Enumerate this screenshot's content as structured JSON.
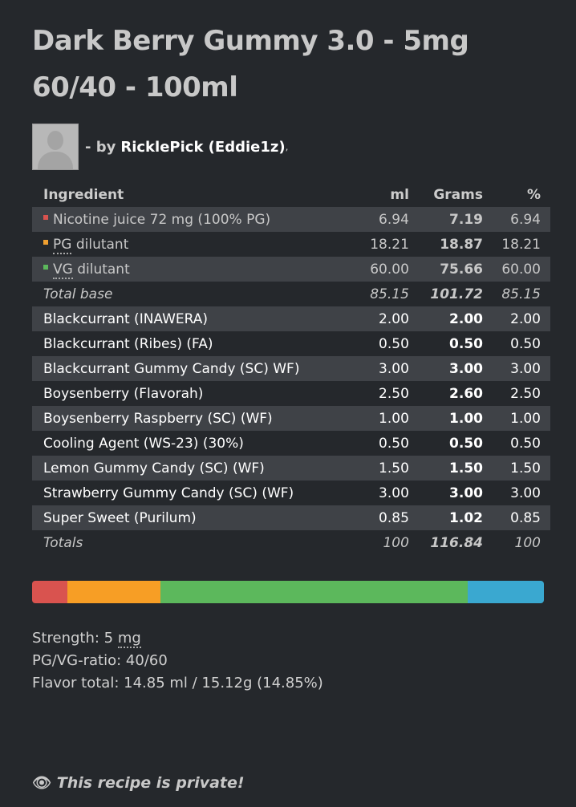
{
  "recipe": {
    "title_line1": "Dark Berry Gummy 3.0 - 5mg",
    "title_line2": "60/40 - 100ml",
    "by_prefix": "- by",
    "author": "RicklePick (Eddie1z)",
    "author_suffix": ","
  },
  "table": {
    "headers": {
      "ingredient": "Ingredient",
      "ml": "ml",
      "grams": "Grams",
      "percent": "%"
    },
    "base_rows": [
      {
        "name": "Nicotine juice 72 mg (100% PG)",
        "ml": "6.94",
        "grams": "7.19",
        "percent": "6.94",
        "color": "#d9534f"
      },
      {
        "name_abbr": "PG",
        "name_rest": " dilutant",
        "ml": "18.21",
        "grams": "18.87",
        "percent": "18.21",
        "color": "#f0a030"
      },
      {
        "name_abbr": "VG",
        "name_rest": " dilutant",
        "ml": "60.00",
        "grams": "75.66",
        "percent": "60.00",
        "color": "#5cb85c"
      }
    ],
    "total_base": {
      "label": "Total base",
      "ml": "85.15",
      "grams": "101.72",
      "percent": "85.15"
    },
    "flavors": [
      {
        "name": "Blackcurrant (INAWERA)",
        "ml": "2.00",
        "grams": "2.00",
        "percent": "2.00"
      },
      {
        "name": "Blackcurrant (Ribes) (FA)",
        "ml": "0.50",
        "grams": "0.50",
        "percent": "0.50"
      },
      {
        "name": "Blackcurrant Gummy Candy (SC) WF)",
        "ml": "3.00",
        "grams": "3.00",
        "percent": "3.00"
      },
      {
        "name": "Boysenberry (Flavorah)",
        "ml": "2.50",
        "grams": "2.60",
        "percent": "2.50"
      },
      {
        "name": "Boysenberry Raspberry (SC) (WF)",
        "ml": "1.00",
        "grams": "1.00",
        "percent": "1.00"
      },
      {
        "name": "Cooling Agent (WS-23) (30%)",
        "ml": "0.50",
        "grams": "0.50",
        "percent": "0.50"
      },
      {
        "name": "Lemon Gummy Candy (SC) (WF)",
        "ml": "1.50",
        "grams": "1.50",
        "percent": "1.50"
      },
      {
        "name": "Strawberry Gummy Candy (SC) (WF)",
        "ml": "3.00",
        "grams": "3.00",
        "percent": "3.00"
      },
      {
        "name": "Super Sweet (Purilum)",
        "ml": "0.85",
        "grams": "1.02",
        "percent": "0.85"
      }
    ],
    "totals": {
      "label": "Totals",
      "ml": "100",
      "grams": "116.84",
      "percent": "100"
    }
  },
  "composition_bar": [
    {
      "part": "nicotine",
      "percent": 6.94,
      "color": "#d9534f"
    },
    {
      "part": "pg",
      "percent": 18.21,
      "color": "#f79e25"
    },
    {
      "part": "vg",
      "percent": 60.0,
      "color": "#5cb85c"
    },
    {
      "part": "flavor",
      "percent": 14.85,
      "color": "#3aa8d0"
    }
  ],
  "stats": {
    "strength_label": "Strength: 5 ",
    "strength_unit": "mg",
    "ratio": "PG/VG-ratio: 40/60",
    "flavor_total": "Flavor total: 14.85 ml / 15.12g (14.85%)"
  },
  "privacy": {
    "icon": "eye-slash-icon",
    "text": "This recipe is private!"
  }
}
